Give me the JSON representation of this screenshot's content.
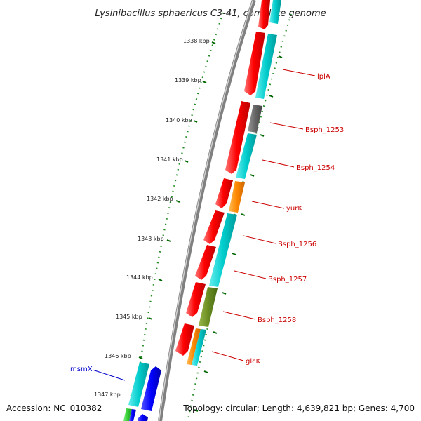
{
  "header": {
    "title": "Lysinibacillus sphaericus C3-41, complete genome"
  },
  "footer": {
    "accession": "Accession: NC_010382",
    "topology": "Topology: circular; Length: 4,639,821 bp; Genes: 4,700"
  },
  "scale": {
    "ticks": [
      {
        "label": "1338 kbp"
      },
      {
        "label": "1339 kbp"
      },
      {
        "label": "1340 kbp"
      },
      {
        "label": "1341 kbp"
      },
      {
        "label": "1342 kbp"
      },
      {
        "label": "1343 kbp"
      },
      {
        "label": "1344 kbp"
      },
      {
        "label": "1345 kbp"
      },
      {
        "label": "1346 kbp"
      },
      {
        "label": "1347 kbp"
      }
    ]
  },
  "genes": [
    {
      "label": "lplA",
      "color": "#cc0000"
    },
    {
      "label": "Bsph_1253",
      "color": "#cc0000"
    },
    {
      "label": "Bsph_1254",
      "color": "#cc0000"
    },
    {
      "label": "yurK",
      "color": "#cc0000"
    },
    {
      "label": "Bsph_1256",
      "color": "#cc0000"
    },
    {
      "label": "Bsph_1257",
      "color": "#cc0000"
    },
    {
      "label": "Bsph_1258",
      "color": "#cc0000"
    },
    {
      "label": "glcK",
      "color": "#cc0000"
    },
    {
      "label": "msmX",
      "color": "#0000cc"
    }
  ],
  "colors": {
    "forward_cds": "#ff0000",
    "reverse_cds": "#0000ff",
    "cog_cyan": "#00cccc",
    "cog_gray": "#666666",
    "cog_orange": "#ff8800",
    "cog_olive": "#6b8e23",
    "cog_green": "#33cc33",
    "backbone": "#808080",
    "ticks": "#006600"
  }
}
